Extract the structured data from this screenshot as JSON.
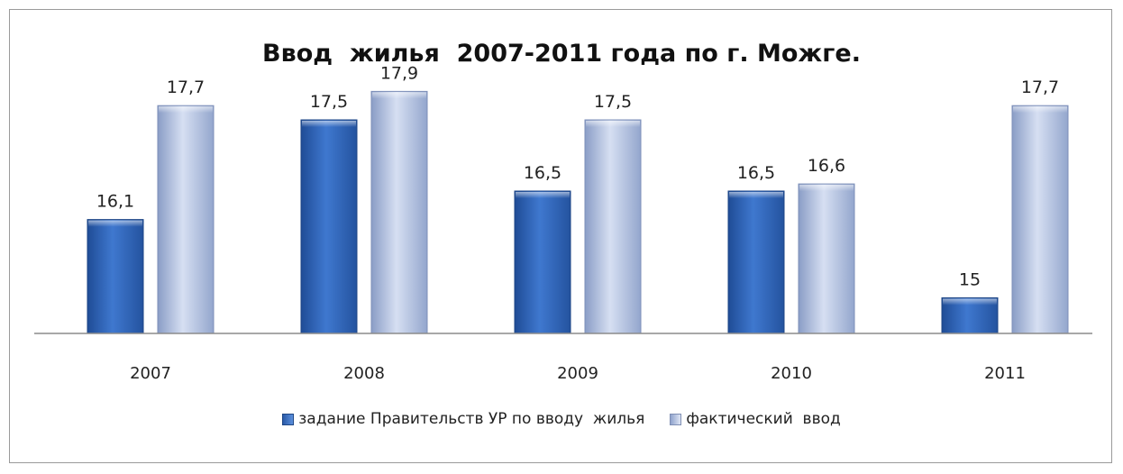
{
  "chart_data": {
    "type": "bar",
    "title": "Ввод  жилья  2007-2011 года по г. Можге.",
    "categories": [
      "2007",
      "2008",
      "2009",
      "2010",
      "2011"
    ],
    "series": [
      {
        "name": "задание Правительств УР по вводу  жилья",
        "values": [
          16.1,
          17.5,
          16.5,
          16.5,
          15
        ],
        "labels": [
          "16,1",
          "17,5",
          "16,5",
          "16,5",
          "15"
        ],
        "color": "#3a6fc2"
      },
      {
        "name": "фактический  ввод",
        "values": [
          17.7,
          17.9,
          17.5,
          16.6,
          17.7
        ],
        "labels": [
          "17,7",
          "17,9",
          "17,5",
          "16,6",
          "17,7"
        ],
        "color": "#b4c3e2"
      }
    ],
    "xlabel": "",
    "ylabel": "",
    "grid": false,
    "legend": "bottom"
  }
}
